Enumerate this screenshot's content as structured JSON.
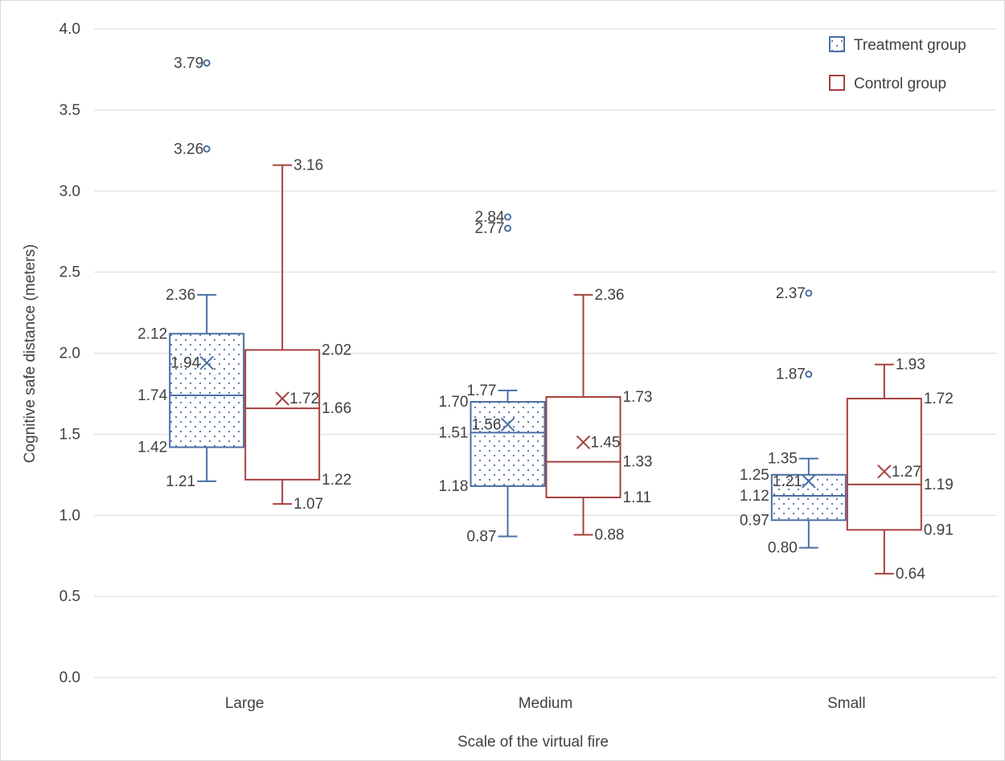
{
  "chart_data": {
    "type": "box",
    "title": "",
    "xlabel": "Scale of the virtual fire",
    "ylabel": "Cognitive safe distance (meters)",
    "ylim": [
      0,
      4
    ],
    "y_ticks": [
      "0.0",
      "0.5",
      "1.0",
      "1.5",
      "2.0",
      "2.5",
      "3.0",
      "3.5",
      "4.0"
    ],
    "grid": "horizontal",
    "legend_position": "top-right",
    "categories": [
      "Large",
      "Medium",
      "Small"
    ],
    "series": [
      {
        "name": "Treatment group",
        "color": "#4a6fa5",
        "pattern": "dotted",
        "boxes": [
          {
            "min": 1.21,
            "q1": 1.42,
            "median": 1.74,
            "q3": 2.12,
            "max": 2.36,
            "mean": 1.94,
            "outliers": [
              3.26,
              3.79
            ],
            "labels": {
              "min": "1.21",
              "q1": "1.42",
              "median": "1.74",
              "q3": "2.12",
              "max": "2.36",
              "mean": "1.94",
              "outliers": [
                "3.26",
                "3.79"
              ]
            }
          },
          {
            "min": 0.87,
            "q1": 1.18,
            "median": 1.51,
            "q3": 1.7,
            "max": 1.77,
            "mean": 1.56,
            "outliers": [
              2.77,
              2.84
            ],
            "labels": {
              "min": "0.87",
              "q1": "1.18",
              "median": "1.51",
              "q3": "1.70",
              "max": "1.77",
              "mean": "1.56",
              "outliers": [
                "2.77",
                "2.84"
              ]
            }
          },
          {
            "min": 0.8,
            "q1": 0.97,
            "median": 1.12,
            "q3": 1.25,
            "max": 1.35,
            "mean": 1.21,
            "outliers": [
              1.87,
              2.37
            ],
            "labels": {
              "min": "0.80",
              "q1": "0.97",
              "median": "1.12",
              "q3": "1.25",
              "max": "1.35",
              "mean": "1.21",
              "outliers": [
                "1.87",
                "2.37"
              ]
            }
          }
        ]
      },
      {
        "name": "Control group",
        "color": "#a5403e",
        "pattern": "none",
        "boxes": [
          {
            "min": 1.07,
            "q1": 1.22,
            "median": 1.66,
            "q3": 2.02,
            "max": 3.16,
            "mean": 1.72,
            "outliers": [],
            "labels": {
              "min": "1.07",
              "q1": "1.22",
              "median": "1.66",
              "q3": "2.02",
              "max": "3.16",
              "mean": "1.72",
              "outliers": []
            }
          },
          {
            "min": 0.88,
            "q1": 1.11,
            "median": 1.33,
            "q3": 1.73,
            "max": 2.36,
            "mean": 1.45,
            "outliers": [],
            "labels": {
              "min": "0.88",
              "q1": "1.11",
              "median": "1.33",
              "q3": "1.73",
              "max": "2.36",
              "mean": "1.45",
              "outliers": []
            }
          },
          {
            "min": 0.64,
            "q1": 0.91,
            "median": 1.19,
            "q3": 1.72,
            "max": 1.93,
            "mean": 1.27,
            "outliers": [],
            "labels": {
              "min": "0.64",
              "q1": "0.91",
              "median": "1.19",
              "q3": "1.72",
              "max": "1.93",
              "mean": "1.27",
              "outliers": []
            }
          }
        ]
      }
    ]
  }
}
